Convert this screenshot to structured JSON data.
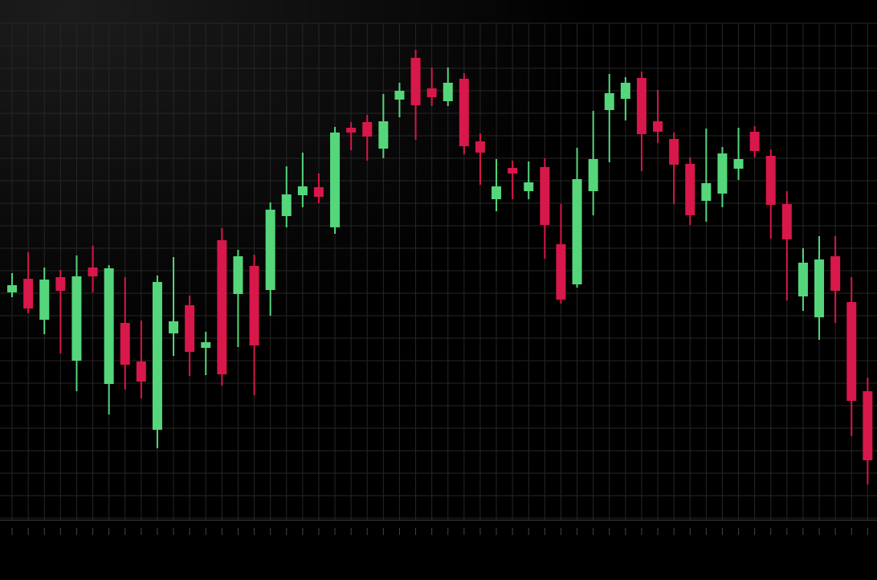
{
  "chart_data": {
    "type": "candlestick",
    "categories": [
      null,
      null,
      null,
      null,
      null,
      null,
      null,
      null,
      null,
      null,
      null,
      null,
      null,
      null,
      null,
      null,
      null,
      null,
      null,
      null,
      null,
      null,
      null,
      null,
      null,
      null,
      null,
      null,
      null,
      null,
      null,
      null,
      null,
      null,
      null,
      null,
      null,
      null,
      null,
      null,
      null,
      null,
      null,
      null,
      null,
      null,
      null,
      null,
      null,
      null,
      null,
      null,
      null,
      null
    ],
    "open": [
      281,
      298,
      247,
      300,
      196,
      312,
      167,
      243,
      195,
      110,
      230,
      265,
      212,
      346,
      279,
      314,
      284,
      376,
      402,
      412,
      362,
      486,
      493,
      460,
      521,
      573,
      535,
      519,
      547,
      469,
      397,
      436,
      407,
      437,
      341,
      291,
      407,
      508,
      522,
      548,
      494,
      472,
      441,
      395,
      404,
      435,
      481,
      451,
      391,
      276,
      250,
      326,
      269,
      158
    ],
    "high": [
      305,
      331,
      312,
      309,
      327,
      339,
      315,
      300,
      246,
      302,
      325,
      277,
      232,
      361,
      334,
      328,
      393,
      438,
      455,
      429,
      487,
      493,
      502,
      528,
      542,
      583,
      561,
      561,
      554,
      479,
      447,
      445,
      444,
      448,
      391,
      461,
      507,
      553,
      549,
      556,
      533,
      480,
      449,
      485,
      462,
      486,
      488,
      459,
      407,
      336,
      351,
      351,
      300,
      175
    ],
    "low": [
      275,
      255,
      229,
      205,
      158,
      281,
      129,
      160,
      149,
      87,
      202,
      177,
      178,
      165,
      213,
      153,
      252,
      362,
      387,
      392,
      354,
      458,
      445,
      448,
      499,
      471,
      513,
      513,
      453,
      415,
      382,
      397,
      397,
      323,
      267,
      287,
      377,
      443,
      495,
      432,
      467,
      391,
      365,
      369,
      387,
      421,
      449,
      348,
      271,
      258,
      222,
      243,
      102,
      42
    ],
    "close": [
      290,
      261,
      297,
      283,
      301,
      301,
      311,
      191,
      170,
      294,
      245,
      207,
      219,
      179,
      326,
      215,
      384,
      403,
      413,
      400,
      480,
      480,
      475,
      494,
      532,
      514,
      524,
      542,
      463,
      455,
      413,
      429,
      418,
      365,
      272,
      422,
      447,
      529,
      542,
      478,
      481,
      440,
      377,
      417,
      454,
      447,
      457,
      390,
      347,
      318,
      322,
      283,
      146,
      72
    ],
    "up_color": "#55d67b",
    "down_color": "#d8174a",
    "ylim": [
      0,
      616
    ],
    "yticks": [
      0,
      28,
      56,
      84,
      112,
      140,
      168,
      196,
      224,
      252,
      280,
      308,
      336,
      364,
      392,
      420,
      448,
      476,
      504,
      532,
      560,
      588,
      616
    ],
    "grid": true
  }
}
